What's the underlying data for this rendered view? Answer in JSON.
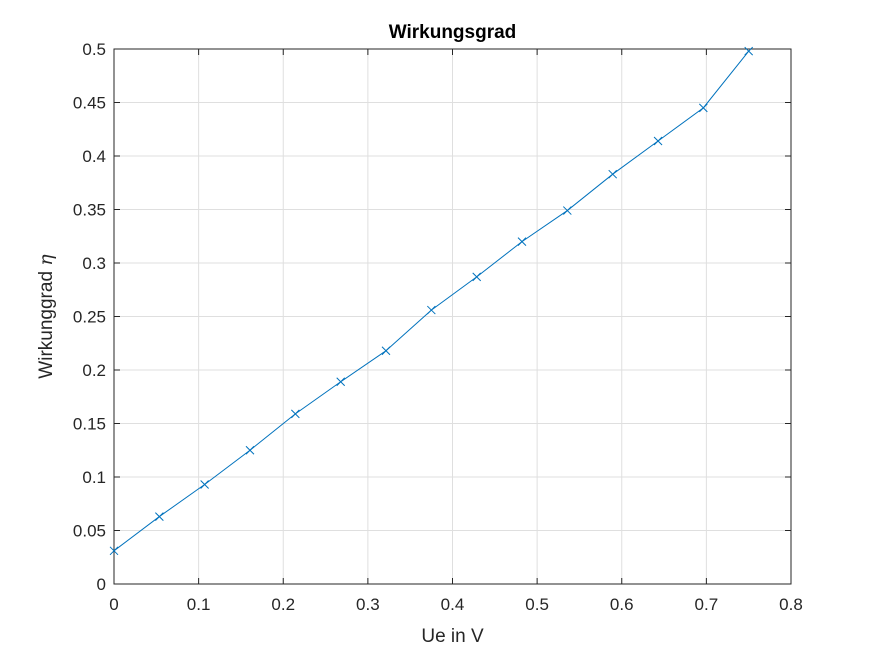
{
  "chart_data": {
    "type": "line",
    "title": "Wirkungsgrad",
    "xlabel": "Ue in V",
    "ylabel_text": "Wirkunggrad ",
    "ylabel_symbol": "η",
    "xlim": [
      0,
      0.8
    ],
    "ylim": [
      0,
      0.5
    ],
    "xticks": [
      "0",
      "0.1",
      "0.2",
      "0.3",
      "0.4",
      "0.5",
      "0.6",
      "0.7",
      "0.8"
    ],
    "yticks": [
      "0",
      "0.05",
      "0.1",
      "0.15",
      "0.2",
      "0.25",
      "0.3",
      "0.35",
      "0.4",
      "0.45",
      "0.5"
    ],
    "grid": true,
    "marker": "x",
    "line_color": "#0072BD",
    "series": [
      {
        "x": [
          0,
          0.0536,
          0.1071,
          0.1607,
          0.2143,
          0.2679,
          0.3214,
          0.375,
          0.4286,
          0.4821,
          0.5357,
          0.5893,
          0.6429,
          0.6964,
          0.75
        ],
        "values": [
          0.031,
          0.063,
          0.093,
          0.125,
          0.159,
          0.189,
          0.218,
          0.256,
          0.287,
          0.32,
          0.349,
          0.383,
          0.414,
          0.445,
          0.498
        ]
      }
    ]
  }
}
